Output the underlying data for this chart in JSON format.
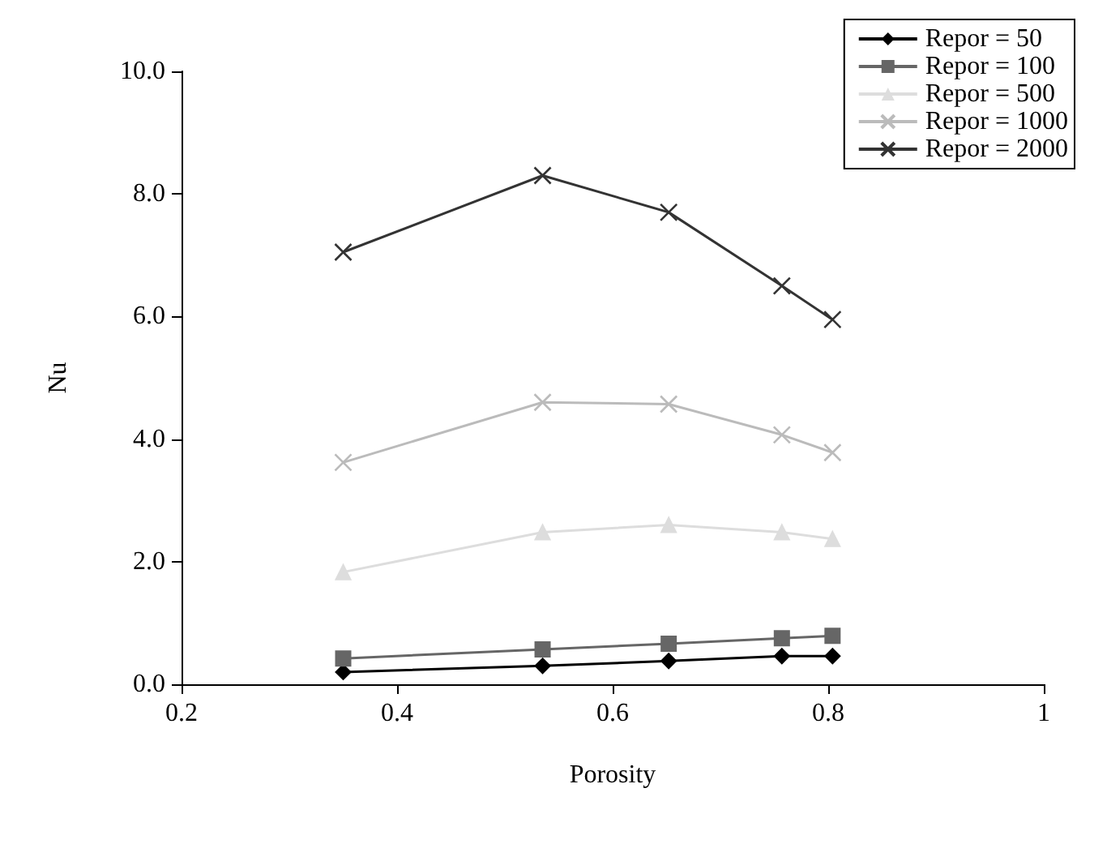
{
  "chart_data": {
    "type": "line",
    "xlabel": "Porosity",
    "ylabel": "Nu",
    "x": [
      0.35,
      0.535,
      0.652,
      0.757,
      0.804
    ],
    "series": [
      {
        "name": "Repor = 50",
        "color": "#000000",
        "marker": "diamond",
        "values": [
          0.2,
          0.3,
          0.38,
          0.46,
          0.46
        ]
      },
      {
        "name": "Repor = 100",
        "color": "#666666",
        "marker": "square",
        "values": [
          0.42,
          0.57,
          0.66,
          0.75,
          0.79
        ]
      },
      {
        "name": "Repor = 500",
        "color": "#dddddd",
        "marker": "triangle",
        "values": [
          1.83,
          2.48,
          2.6,
          2.48,
          2.37
        ]
      },
      {
        "name": "Repor = 1000",
        "color": "#bbbbbb",
        "marker": "cross",
        "values": [
          3.62,
          4.6,
          4.57,
          4.07,
          3.78
        ]
      },
      {
        "name": "Repor = 2000",
        "color": "#333333",
        "marker": "cross",
        "values": [
          7.05,
          8.3,
          7.7,
          6.5,
          5.95
        ]
      }
    ],
    "xlim": [
      0.2,
      1
    ],
    "xticks": [
      0.2,
      0.4,
      0.6,
      0.8,
      1
    ],
    "ylim": [
      0,
      10
    ],
    "yticks": [
      {
        "value": 0,
        "label": "0.0"
      },
      {
        "value": 2,
        "label": "2.0"
      },
      {
        "value": 4,
        "label": "4.0"
      },
      {
        "value": 6,
        "label": "6.0"
      },
      {
        "value": 8,
        "label": "8.0"
      },
      {
        "value": 10,
        "label": "10.0"
      }
    ],
    "grid": false,
    "legend": "top right",
    "line_style": "solid"
  }
}
